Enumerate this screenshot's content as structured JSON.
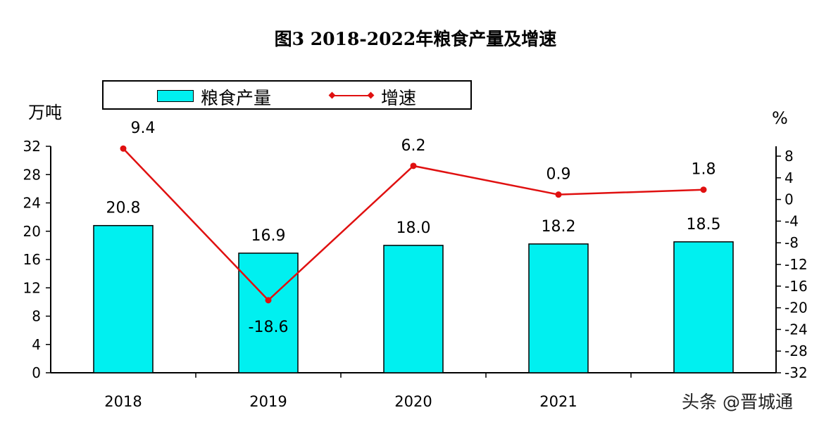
{
  "chart_data": {
    "type": "bar",
    "title": "图3  2018-2022年粮食产量及增速",
    "categories": [
      "2018",
      "2019",
      "2020",
      "2021",
      ""
    ],
    "series": [
      {
        "name": "粮食产量",
        "type": "bar",
        "axis": "left",
        "values": [
          20.8,
          16.9,
          18.0,
          18.2,
          18.5
        ],
        "labels": [
          "20.8",
          "16.9",
          "18.0",
          "18.2",
          "18.5"
        ],
        "color": "#00f0f0"
      },
      {
        "name": "增速",
        "type": "line",
        "axis": "right",
        "values": [
          9.4,
          -18.6,
          6.2,
          0.9,
          1.8
        ],
        "labels": [
          "9.4",
          "-18.6",
          "6.2",
          "0.9",
          "1.8"
        ],
        "color": "#e01010"
      }
    ],
    "ylabel": "万吨",
    "ylim": [
      0,
      32
    ],
    "yticks": [
      0,
      4,
      8,
      12,
      16,
      20,
      24,
      28,
      32
    ],
    "y2label": "%",
    "y2lim": [
      -32,
      8
    ],
    "y2ticks": [
      8,
      4,
      0,
      -4,
      -8,
      -12,
      -16,
      -20,
      -24,
      -28,
      -32
    ],
    "grid": false,
    "legend_placement": "top"
  },
  "watermark": "头条 @晋城通"
}
